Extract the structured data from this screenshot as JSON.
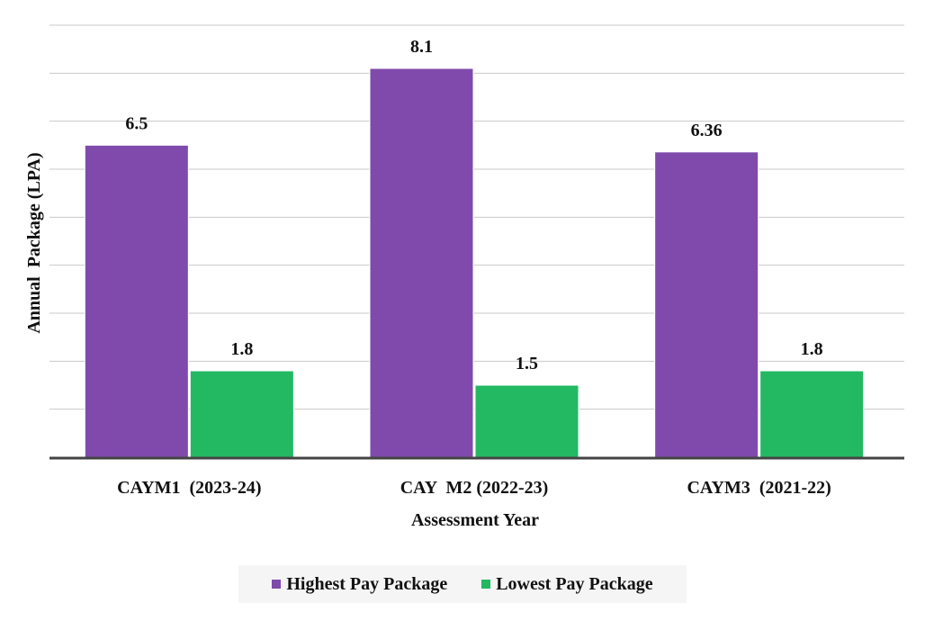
{
  "chart_data": {
    "type": "bar",
    "categories": [
      "CAYM1  (2023-24)",
      "CAY  M2 (2022-23)",
      "CAYM3  (2021-22)"
    ],
    "series": [
      {
        "name": "Highest Pay Package",
        "values": [
          6.5,
          8.1,
          6.36
        ],
        "color": "#7f4aab",
        "labels": [
          "6.5",
          "8.1",
          "6.36"
        ]
      },
      {
        "name": "Lowest Pay Package",
        "values": [
          1.8,
          1.5,
          1.8
        ],
        "color": "#23b862",
        "labels": [
          "1.8",
          "1.5",
          "1.8"
        ]
      }
    ],
    "xlabel": "Assessment Year",
    "ylabel": "Annual  Package (LPA)",
    "ylim": [
      0,
      9
    ],
    "grid": true,
    "legend_position": "bottom"
  }
}
